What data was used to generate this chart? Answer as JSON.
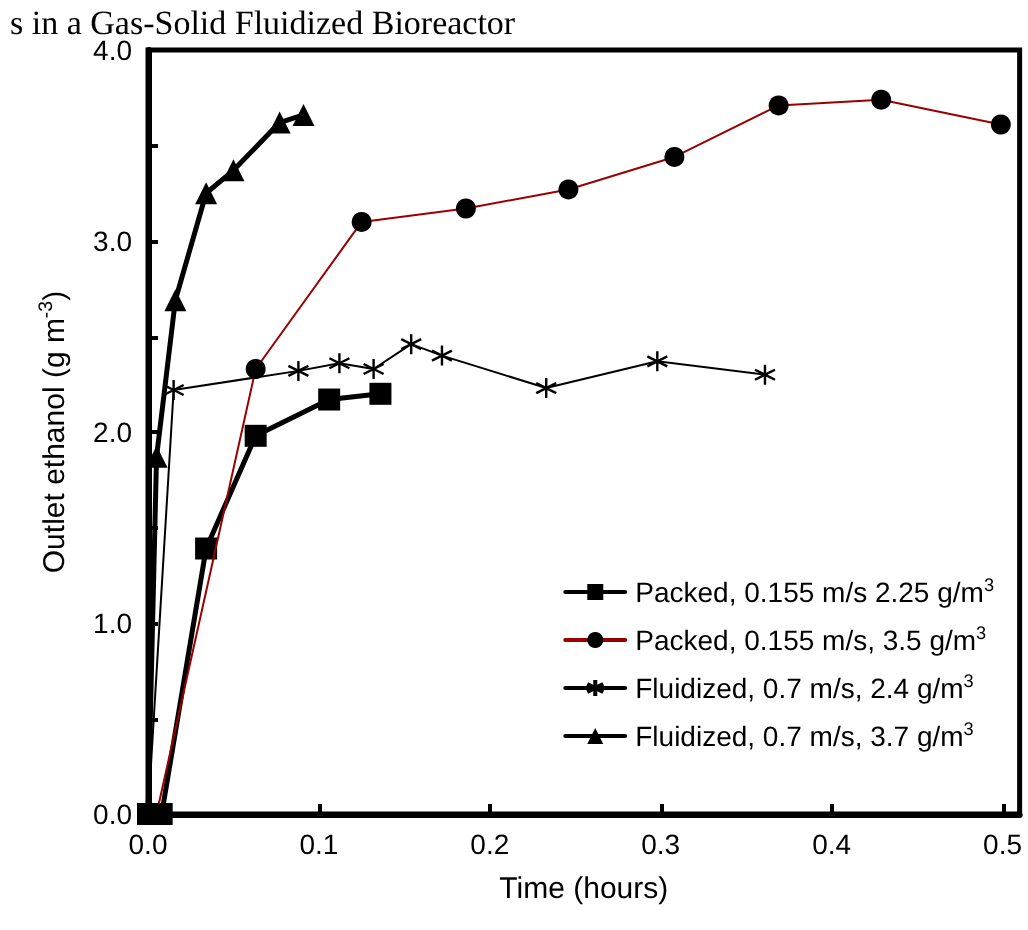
{
  "chart_data": {
    "type": "line",
    "title": "s in a Gas-Solid Fluidized Bioreactor",
    "xlabel": "Time (hours)",
    "ylabel": "Outlet ethanol (g m$^{-3}$)",
    "xlim": [
      0,
      0.51
    ],
    "ylim": [
      0,
      4
    ],
    "xticks": [
      {
        "value": 0,
        "label": "0.0"
      },
      {
        "value": 0.1,
        "label": "0.1"
      },
      {
        "value": 0.2,
        "label": "0.2"
      },
      {
        "value": 0.3,
        "label": "0.3"
      },
      {
        "value": 0.4,
        "label": "0.4"
      },
      {
        "value": 0.5,
        "label": "0.5"
      }
    ],
    "yticks": [
      {
        "value": 0,
        "label": "0.0"
      },
      {
        "value": 0.5,
        "label": null
      },
      {
        "value": 1,
        "label": "1.0"
      },
      {
        "value": 1.5,
        "label": null
      },
      {
        "value": 2,
        "label": "2.0"
      },
      {
        "value": 2.5,
        "label": null
      },
      {
        "value": 3,
        "label": "3.0"
      },
      {
        "value": 3.5,
        "label": null
      },
      {
        "value": 4,
        "label": "4.0"
      }
    ],
    "grid": false,
    "legend": "bottom right",
    "series": [
      {
        "name": "Packed, 0.155 m/s 2.25 g/m$^{3}$",
        "color": "#000000",
        "marker": "square",
        "x": [
          0,
          0.008,
          0.034,
          0.063,
          0.106,
          0.136
        ],
        "values": [
          0,
          0,
          1.39,
          1.98,
          2.17,
          2.2
        ]
      },
      {
        "name": "Packed, 0.155 m/s, 3.5 g/m$^{3}$",
        "color": "#990000",
        "marker": "circle",
        "x": [
          0.005,
          0.063,
          0.125,
          0.186,
          0.246,
          0.308,
          0.369,
          0.429,
          0.499
        ],
        "values": [
          0,
          2.33,
          3.1,
          3.17,
          3.27,
          3.44,
          3.71,
          3.74,
          3.61
        ]
      },
      {
        "name": "Fluidized, 0.7 m/s, 2.4 g/m$^{3}$",
        "color": "#000000",
        "marker": "cross",
        "x": [
          0,
          0.015,
          0.088,
          0.112,
          0.132,
          0.154,
          0.172,
          0.233,
          0.298,
          0.361
        ],
        "values": [
          0,
          2.22,
          2.32,
          2.36,
          2.33,
          2.46,
          2.4,
          2.23,
          2.37,
          2.3
        ]
      },
      {
        "name": "Fluidized, 0.7 m/s, 3.7 g/m$^{3}$",
        "color": "#000000",
        "marker": "triangle",
        "x": [
          0,
          0.005,
          0.016,
          0.034,
          0.05,
          0.077,
          0.091
        ],
        "values": [
          0,
          1.87,
          2.69,
          3.25,
          3.37,
          3.62,
          3.66
        ]
      }
    ]
  }
}
